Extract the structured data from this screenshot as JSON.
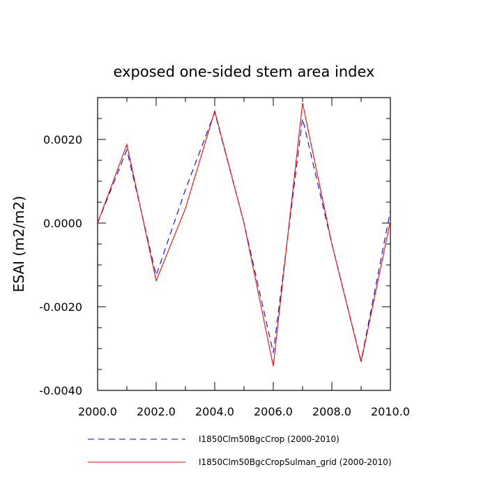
{
  "chart_data": {
    "type": "line",
    "title": "exposed one-sided stem area index",
    "xlabel": "",
    "ylabel": "ESAI  (m2/m2)",
    "xlim": [
      2000,
      2010
    ],
    "ylim": [
      -0.004,
      0.003
    ],
    "x_ticks": [
      "2000.0",
      "2002.0",
      "2004.0",
      "2006.0",
      "2008.0",
      "2010.0"
    ],
    "y_ticks": [
      "0.0020",
      "0.0000",
      "-0.0020",
      "-0.0040"
    ],
    "grid": false,
    "legend_position": "bottom",
    "x": [
      2000,
      2001,
      2002,
      2003,
      2004,
      2005,
      2006,
      2007,
      2008,
      2009,
      2010
    ],
    "series": [
      {
        "name": "I1850Clm50BgcCrop (2000-2010)",
        "color": "#0000ff",
        "dash": "dashed",
        "values": [
          0.0,
          0.00175,
          -0.00125,
          0.0008,
          0.00265,
          0.0,
          -0.0031,
          0.0025,
          -0.0005,
          -0.0033,
          0.0003
        ]
      },
      {
        "name": "I1850Clm50BgcCropSulman_grid (2000-2010)",
        "color": "#ff0000",
        "dash": "solid",
        "values": [
          0.0,
          0.00188,
          -0.00138,
          0.00035,
          0.00268,
          0.0,
          -0.00342,
          0.00287,
          -0.0005,
          -0.00332,
          5e-05
        ]
      }
    ]
  }
}
